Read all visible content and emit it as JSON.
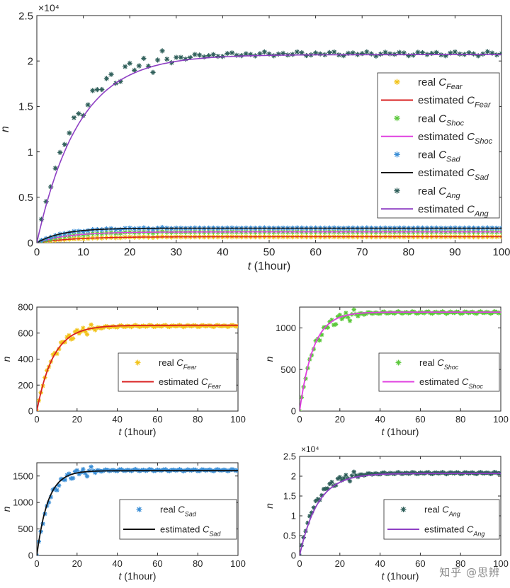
{
  "watermark": "知乎 @思辨",
  "colors": {
    "fear": "#F2C31A",
    "fear_fit": "#D92020",
    "shoc": "#5CC83C",
    "shoc_fit": "#E040E0",
    "sad": "#3A8ED6",
    "sad_fit": "#111111",
    "ang": "#2F5F5A",
    "ang_fit": "#8E3FC4",
    "axis": "#262626"
  },
  "chart_data": [
    {
      "id": "main",
      "type": "line",
      "xlabel_italic": "t",
      "xlabel_rest": " (1hour)",
      "ylabel": "n",
      "xlim": [
        0,
        100
      ],
      "ylim": [
        0,
        25000
      ],
      "xticks": [
        0,
        10,
        20,
        30,
        40,
        50,
        60,
        70,
        80,
        90,
        100
      ],
      "yticks": [
        0,
        5000,
        10000,
        15000,
        20000,
        25000
      ],
      "ytick_labels": [
        "0",
        "0.5",
        "1",
        "1.5",
        "2",
        "2.5"
      ],
      "exponent_label": "×10⁴",
      "legend_position": "right",
      "series": [
        {
          "key": "fear",
          "label": "real C",
          "sub": "Fear",
          "kind": "points",
          "marker": "star",
          "A": 655,
          "tau": 8,
          "cmd": "asterisk"
        },
        {
          "key": "fear_fit",
          "label": "estimated C",
          "sub": "Fear",
          "kind": "line",
          "A": 660,
          "tau": 8.2
        },
        {
          "key": "shoc",
          "label": "real C",
          "sub": "Shoc",
          "kind": "points",
          "marker": "star",
          "A": 1185,
          "tau": 7
        },
        {
          "key": "shoc_fit",
          "label": "estimated C",
          "sub": "Shoc",
          "kind": "line",
          "A": 1190,
          "tau": 6.8
        },
        {
          "key": "sad",
          "label": "real C",
          "sub": "Sad",
          "kind": "points",
          "marker": "star",
          "A": 1610,
          "tau": 6
        },
        {
          "key": "sad_fit",
          "label": "estimated C",
          "sub": "Sad",
          "kind": "line",
          "A": 1600,
          "tau": 5.5
        },
        {
          "key": "ang",
          "label": "real C",
          "sub": "Ang",
          "kind": "points",
          "marker": "star",
          "A": 20800,
          "tau": 8
        },
        {
          "key": "ang_fit",
          "label": "estimated C",
          "sub": "Ang",
          "kind": "line",
          "A": 20700,
          "tau": 9
        }
      ]
    },
    {
      "id": "fear",
      "type": "line",
      "xlabel_italic": "t",
      "xlabel_rest": " (1hour)",
      "ylabel": "n",
      "xlim": [
        0,
        100
      ],
      "ylim": [
        0,
        800
      ],
      "xticks": [
        0,
        20,
        40,
        60,
        80,
        100
      ],
      "yticks": [
        0,
        200,
        400,
        600,
        800
      ],
      "legend_position": "bottom-right",
      "series": [
        {
          "key": "fear",
          "label": "real C",
          "sub": "Fear",
          "kind": "points",
          "A": 655,
          "tau": 8
        },
        {
          "key": "fear_fit",
          "label": "estimated C",
          "sub": "Fear",
          "kind": "line",
          "A": 660,
          "tau": 8.2
        }
      ]
    },
    {
      "id": "shoc",
      "type": "line",
      "xlabel_italic": "t",
      "xlabel_rest": " (1hour)",
      "ylabel": "n",
      "xlim": [
        0,
        100
      ],
      "ylim": [
        0,
        1250
      ],
      "xticks": [
        0,
        20,
        40,
        60,
        80,
        100
      ],
      "yticks": [
        0,
        500,
        1000
      ],
      "legend_position": "bottom-right",
      "series": [
        {
          "key": "shoc",
          "label": "real C",
          "sub": "Shoc",
          "kind": "points",
          "A": 1185,
          "tau": 7
        },
        {
          "key": "shoc_fit",
          "label": "estimated C",
          "sub": "Shoc",
          "kind": "line",
          "A": 1190,
          "tau": 6.8
        }
      ]
    },
    {
      "id": "sad",
      "type": "line",
      "xlabel_italic": "t",
      "xlabel_rest": " (1hour)",
      "ylabel": "n",
      "xlim": [
        0,
        100
      ],
      "ylim": [
        0,
        1750
      ],
      "xticks": [
        0,
        20,
        40,
        60,
        80,
        100
      ],
      "yticks": [
        0,
        500,
        1000,
        1500
      ],
      "legend_position": "bottom-right",
      "series": [
        {
          "key": "sad",
          "label": "real C",
          "sub": "Sad",
          "kind": "points",
          "A": 1610,
          "tau": 6
        },
        {
          "key": "sad_fit",
          "label": "estimated C",
          "sub": "Sad",
          "kind": "line",
          "A": 1600,
          "tau": 5.5
        }
      ]
    },
    {
      "id": "ang",
      "type": "line",
      "xlabel_italic": "t",
      "xlabel_rest": " (1hour)",
      "ylabel": "n",
      "xlim": [
        0,
        100
      ],
      "ylim": [
        0,
        25000
      ],
      "xticks": [
        0,
        20,
        40,
        60,
        80,
        100
      ],
      "yticks": [
        0,
        5000,
        10000,
        15000,
        20000,
        25000
      ],
      "ytick_labels": [
        "0",
        "0.5",
        "1",
        "1.5",
        "2",
        "2.5"
      ],
      "exponent_label": "×10⁴",
      "legend_position": "bottom-right",
      "series": [
        {
          "key": "ang",
          "label": "real C",
          "sub": "Ang",
          "kind": "points",
          "A": 20800,
          "tau": 8
        },
        {
          "key": "ang_fit",
          "label": "estimated C",
          "sub": "Ang",
          "kind": "line",
          "A": 20700,
          "tau": 9
        }
      ]
    }
  ]
}
